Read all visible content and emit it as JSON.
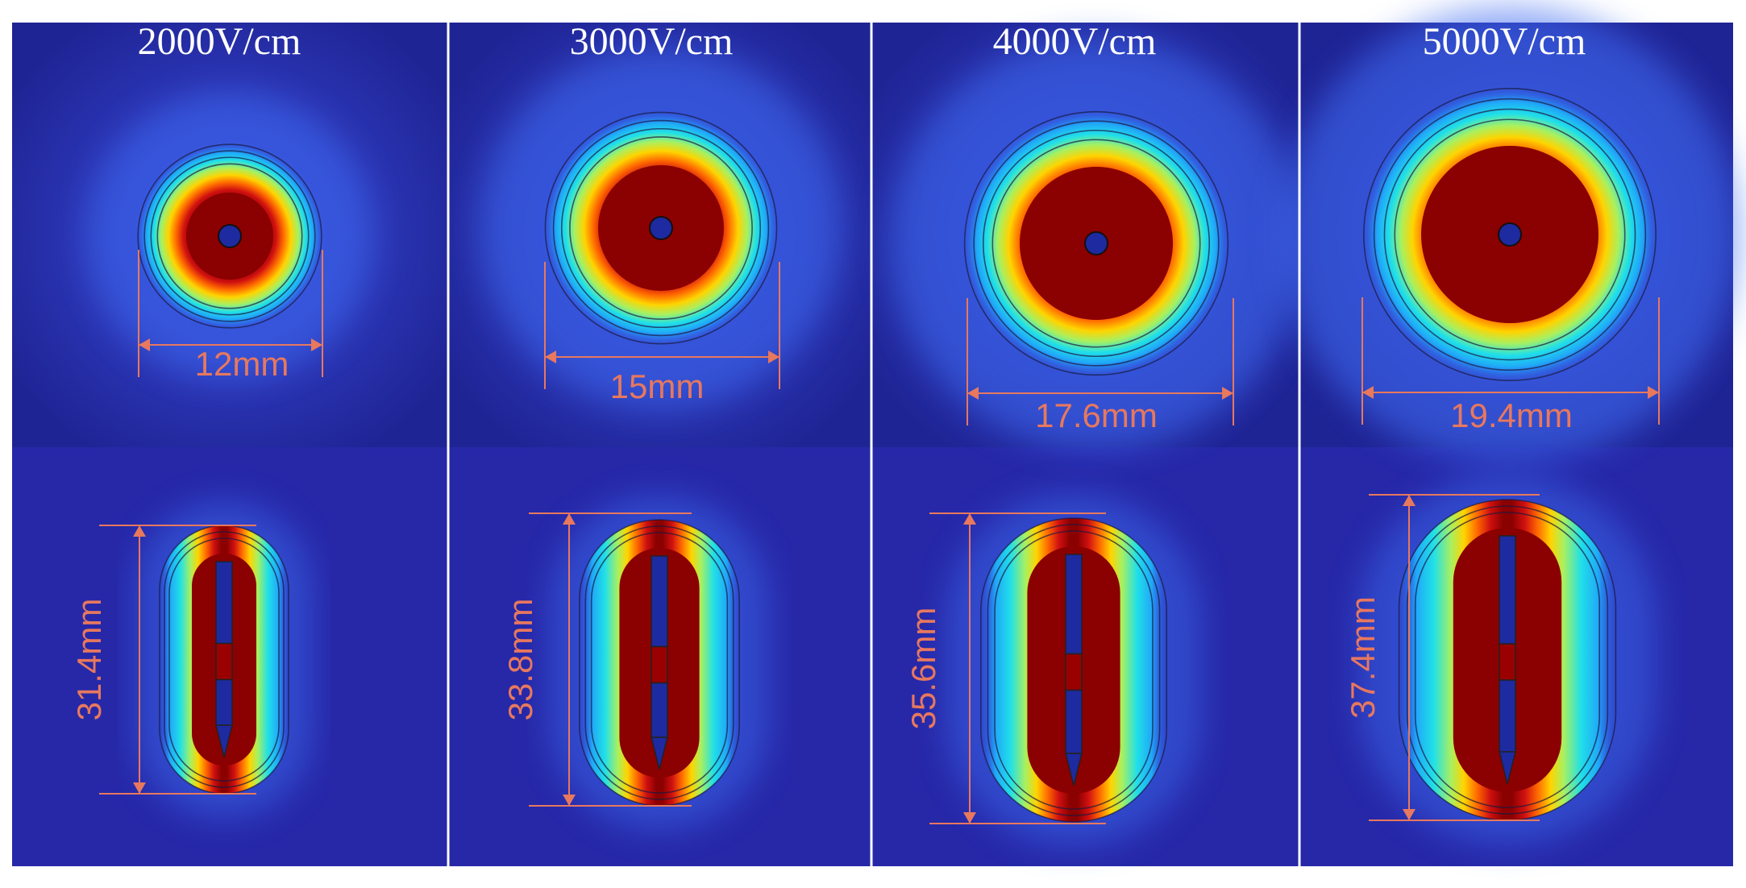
{
  "figure": {
    "panels": [
      {
        "field": "2000V/cm",
        "top_dimension": "12mm",
        "bottom_dimension": "31.4mm"
      },
      {
        "field": "3000V/cm",
        "top_dimension": "15mm",
        "bottom_dimension": "33.8mm"
      },
      {
        "field": "4000V/cm",
        "top_dimension": "17.6mm",
        "bottom_dimension": "35.6mm"
      },
      {
        "field": "5000V/cm",
        "top_dimension": "19.4mm",
        "bottom_dimension": "37.4mm"
      }
    ],
    "colors": {
      "background_blue": "#2628a8",
      "ablation_core": "#8b0000",
      "dimension_line": "#e8785e",
      "divider": "#ffffff",
      "contour": "#1a1a40"
    }
  }
}
